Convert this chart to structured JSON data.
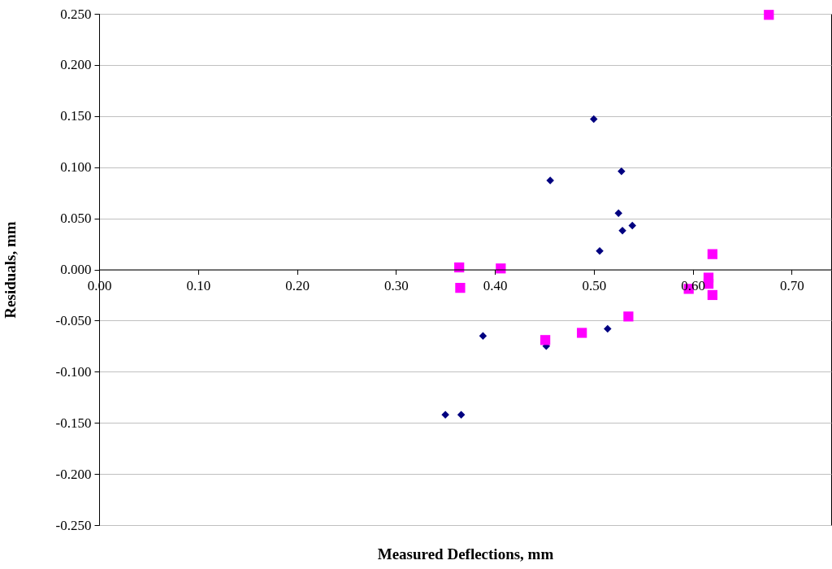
{
  "chart_data": {
    "type": "scatter",
    "xlabel": "Measured Deflections, mm",
    "ylabel": "Residuals, mm",
    "xlim": [
      0,
      0.74
    ],
    "ylim": [
      -0.25,
      0.25
    ],
    "xticks": [
      {
        "value": 0,
        "label": "0.00"
      },
      {
        "value": 0.1,
        "label": "0.10"
      },
      {
        "value": 0.2,
        "label": "0.20"
      },
      {
        "value": 0.3,
        "label": "0.30"
      },
      {
        "value": 0.4,
        "label": "0.40"
      },
      {
        "value": 0.5,
        "label": "0.50"
      },
      {
        "value": 0.6,
        "label": "0.60"
      },
      {
        "value": 0.7,
        "label": "0.70"
      }
    ],
    "yticks": [
      {
        "value": -0.25,
        "label": "-0.250"
      },
      {
        "value": -0.2,
        "label": "-0.200"
      },
      {
        "value": -0.15,
        "label": "-0.150"
      },
      {
        "value": -0.1,
        "label": "-0.100"
      },
      {
        "value": -0.05,
        "label": "-0.050"
      },
      {
        "value": 0,
        "label": "0.000"
      },
      {
        "value": 0.05,
        "label": "0.050"
      },
      {
        "value": 0.1,
        "label": "0.100"
      },
      {
        "value": 0.15,
        "label": "0.150"
      },
      {
        "value": 0.2,
        "label": "0.200"
      },
      {
        "value": 0.25,
        "label": "0.250"
      }
    ],
    "grid": "y",
    "series": [
      {
        "color": "#000080",
        "marker": "diamond",
        "x": [
          0.456,
          0.388,
          0.452,
          0.35,
          0.366,
          0.5,
          0.528,
          0.525,
          0.539,
          0.529,
          0.506,
          0.514
        ],
        "values": [
          0.087,
          -0.065,
          -0.075,
          -0.142,
          -0.142,
          0.147,
          0.096,
          0.055,
          0.043,
          0.038,
          0.018,
          -0.058
        ]
      },
      {
        "color": "#ff00ff",
        "marker": "square",
        "x": [
          0.364,
          0.406,
          0.365,
          0.451,
          0.62,
          0.616,
          0.616,
          0.596,
          0.62,
          0.535,
          0.488,
          0.677
        ],
        "values": [
          0.002,
          0.001,
          -0.018,
          -0.069,
          0.015,
          -0.008,
          -0.014,
          -0.019,
          -0.025,
          -0.046,
          -0.062,
          0.249
        ]
      }
    ]
  }
}
